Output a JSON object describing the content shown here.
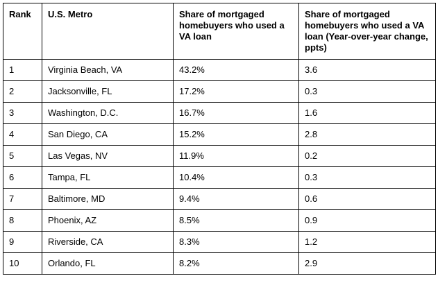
{
  "chart_data": {
    "type": "table",
    "columns": [
      "Rank",
      "U.S. Metro",
      "Share of mortgaged homebuyers who used a VA loan",
      "Share of mortgaged homebuyers who used a VA loan (Year-over-year change, ppts)"
    ],
    "rows": [
      [
        "1",
        "Virginia Beach, VA",
        "43.2%",
        "3.6"
      ],
      [
        "2",
        "Jacksonville, FL",
        "17.2%",
        "0.3"
      ],
      [
        "3",
        "Washington, D.C.",
        "16.7%",
        "1.6"
      ],
      [
        "4",
        "San Diego, CA",
        "15.2%",
        "2.8"
      ],
      [
        "5",
        "Las Vegas, NV",
        "11.9%",
        "0.2"
      ],
      [
        "6",
        "Tampa, FL",
        "10.4%",
        "0.3"
      ],
      [
        "7",
        "Baltimore, MD",
        "9.4%",
        "0.6"
      ],
      [
        "8",
        "Phoenix, AZ",
        "8.5%",
        "0.9"
      ],
      [
        "9",
        "Riverside, CA",
        "8.3%",
        "1.2"
      ],
      [
        "10",
        "Orlando, FL",
        "8.2%",
        "2.9"
      ]
    ],
    "border_color": "#000000",
    "background_color": "#ffffff",
    "grid": true,
    "legend_position": "none"
  }
}
